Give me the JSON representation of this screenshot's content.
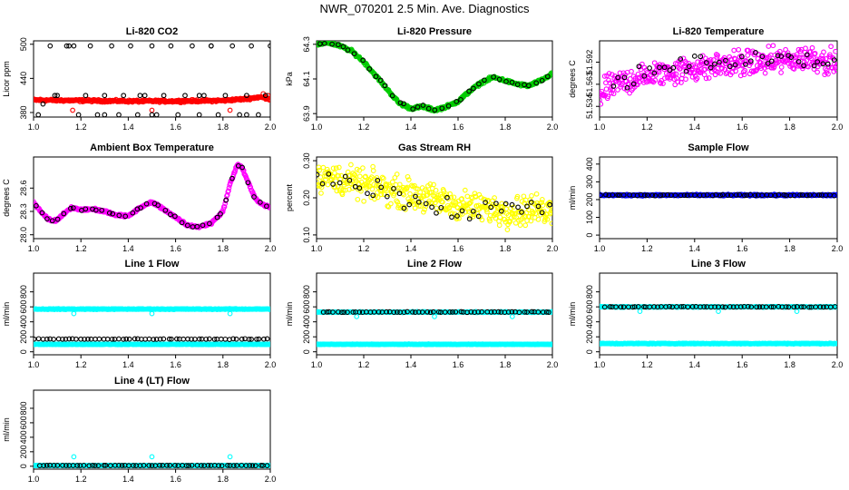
{
  "page": {
    "title": "NWR_070201  2.5 Min. Ave. Diagnostics"
  },
  "chart_data": [
    {
      "type": "scatter",
      "title": "Li-820 CO2",
      "ylabel": "Licor ppm",
      "xlim": [
        1.0,
        2.0
      ],
      "ylim": [
        372,
        506
      ],
      "xticks": [
        1.0,
        1.2,
        1.4,
        1.6,
        1.8,
        2.0
      ],
      "xtick_labels": [
        "1.0",
        "1.2",
        "1.4",
        "1.6",
        "1.8",
        "2.0"
      ],
      "yticks": [
        380,
        440,
        500
      ],
      "ytick_labels": [
        "380",
        "440",
        "500"
      ],
      "series": [
        {
          "name": "co2-dense",
          "color": "#ff0000",
          "style": "dense",
          "x": [
            1.0,
            1.2,
            1.4,
            1.6,
            1.8,
            1.9,
            1.95,
            1.98,
            2.0
          ],
          "y": [
            402,
            401,
            400,
            400,
            401,
            404,
            407,
            406,
            403
          ],
          "noise": 1.5
        },
        {
          "name": "co2-outliers-red",
          "color": "#ff0000",
          "style": "points",
          "x": [
            1.165,
            1.5,
            1.83,
            1.97,
            1.99
          ],
          "y": [
            384,
            384,
            384,
            413,
            410
          ]
        },
        {
          "name": "co2-black",
          "color": "#000000",
          "style": "points",
          "x": [
            1.02,
            1.04,
            1.07,
            1.09,
            1.14,
            1.17,
            1.19,
            1.22,
            1.24,
            1.27,
            1.3,
            1.33,
            1.36,
            1.38,
            1.41,
            1.44,
            1.47,
            1.5,
            1.52,
            1.55,
            1.58,
            1.61,
            1.64,
            1.67,
            1.7,
            1.72,
            1.75,
            1.78,
            1.81,
            1.84,
            1.87,
            1.9,
            1.92,
            1.95,
            1.98,
            2.0,
            1.1,
            1.3,
            1.5,
            1.7,
            1.9,
            1.15,
            1.45,
            1.75
          ],
          "y": [
            376,
            395,
            497,
            410,
            497,
            497,
            376,
            410,
            497,
            376,
            410,
            497,
            376,
            410,
            497,
            376,
            410,
            497,
            376,
            410,
            497,
            376,
            410,
            497,
            376,
            410,
            497,
            376,
            410,
            497,
            376,
            410,
            497,
            376,
            410,
            497,
            410,
            376,
            376,
            410,
            376,
            497,
            410,
            497
          ]
        }
      ]
    },
    {
      "type": "scatter",
      "title": "Li-820 Pressure",
      "ylabel": "kPa",
      "xlim": [
        1.0,
        2.0
      ],
      "ylim": [
        63.88,
        64.32
      ],
      "xticks": [
        1.0,
        1.2,
        1.4,
        1.6,
        1.8,
        2.0
      ],
      "xtick_labels": [
        "1.0",
        "1.2",
        "1.4",
        "1.6",
        "1.8",
        "2.0"
      ],
      "yticks": [
        63.9,
        64.1,
        64.3
      ],
      "ytick_labels": [
        "63.9",
        "64.1",
        "64.3"
      ],
      "series": [
        {
          "name": "pressure-green",
          "color": "#00cc00",
          "style": "dense",
          "x": [
            1.0,
            1.05,
            1.1,
            1.15,
            1.2,
            1.25,
            1.3,
            1.35,
            1.4,
            1.45,
            1.5,
            1.55,
            1.6,
            1.65,
            1.7,
            1.75,
            1.8,
            1.85,
            1.9,
            1.95,
            2.0
          ],
          "y": [
            64.3,
            64.31,
            64.29,
            64.26,
            64.2,
            64.12,
            64.04,
            63.96,
            63.93,
            63.94,
            63.92,
            63.94,
            63.97,
            64.03,
            64.08,
            64.11,
            64.09,
            64.07,
            64.06,
            64.09,
            64.13
          ],
          "noise": 0.006
        },
        {
          "name": "pressure-black",
          "color": "#000000",
          "style": "along",
          "x": [
            1.0,
            1.05,
            1.1,
            1.15,
            1.2,
            1.25,
            1.3,
            1.35,
            1.4,
            1.45,
            1.5,
            1.55,
            1.6,
            1.65,
            1.7,
            1.75,
            1.8,
            1.85,
            1.9,
            1.95,
            2.0
          ],
          "y": [
            64.3,
            64.31,
            64.29,
            64.26,
            64.2,
            64.12,
            64.04,
            63.96,
            63.93,
            63.94,
            63.92,
            63.94,
            63.97,
            64.03,
            64.08,
            64.11,
            64.09,
            64.07,
            64.06,
            64.09,
            64.13
          ],
          "count": 38,
          "noise": 0.006
        }
      ]
    },
    {
      "type": "scatter",
      "title": "Li-820 Temperature",
      "ylabel": "degrees C",
      "xlim": [
        1.0,
        2.0
      ],
      "ylim": [
        51.52,
        51.62
      ],
      "xticks": [
        1.0,
        1.2,
        1.4,
        1.6,
        1.8,
        2.0
      ],
      "xtick_labels": [
        "1.0",
        "1.2",
        "1.4",
        "1.6",
        "1.8",
        "2.0"
      ],
      "yticks": [
        51.534,
        51.563,
        51.592
      ],
      "ytick_labels": [
        "51.534",
        "51.563",
        "51.592"
      ],
      "series": [
        {
          "name": "temp-magenta",
          "color": "#ff00ff",
          "style": "dense",
          "x": [
            1.0,
            1.05,
            1.1,
            1.2,
            1.3,
            1.4,
            1.5,
            1.6,
            1.7,
            1.8,
            1.9,
            2.0
          ],
          "y": [
            51.548,
            51.56,
            51.566,
            51.574,
            51.58,
            51.584,
            51.588,
            51.59,
            51.592,
            51.595,
            51.598,
            51.59
          ],
          "noise": 0.013
        },
        {
          "name": "temp-black",
          "color": "#000000",
          "style": "along",
          "x": [
            1.05,
            1.1,
            1.2,
            1.3,
            1.4,
            1.5,
            1.6,
            1.7,
            1.8,
            1.9,
            2.0
          ],
          "y": [
            51.56,
            51.568,
            51.578,
            51.585,
            51.59,
            51.592,
            51.593,
            51.594,
            51.596,
            51.597,
            51.59
          ],
          "count": 44,
          "noise": 0.008
        }
      ]
    },
    {
      "type": "scatter",
      "title": "Ambient Box Temperature",
      "ylabel": "degrees C",
      "xlim": [
        1.0,
        2.0
      ],
      "ylim": [
        27.95,
        29.0
      ],
      "xticks": [
        1.0,
        1.2,
        1.4,
        1.6,
        1.8,
        2.0
      ],
      "xtick_labels": [
        "1.0",
        "1.2",
        "1.4",
        "1.6",
        "1.8",
        "2.0"
      ],
      "yticks": [
        28.0,
        28.3,
        28.6
      ],
      "ytick_labels": [
        "28.0",
        "28.3",
        "28.6"
      ],
      "series": [
        {
          "name": "abox-magenta",
          "color": "#ff00ff",
          "style": "dense",
          "x": [
            1.0,
            1.03,
            1.06,
            1.08,
            1.1,
            1.13,
            1.16,
            1.2,
            1.25,
            1.3,
            1.35,
            1.4,
            1.45,
            1.5,
            1.55,
            1.6,
            1.65,
            1.7,
            1.75,
            1.8,
            1.83,
            1.86,
            1.88,
            1.9,
            1.93,
            1.96,
            2.0
          ],
          "y": [
            28.42,
            28.3,
            28.2,
            28.18,
            28.19,
            28.28,
            28.35,
            28.32,
            28.33,
            28.3,
            28.25,
            28.24,
            28.35,
            28.42,
            28.33,
            28.22,
            28.12,
            28.1,
            28.15,
            28.3,
            28.65,
            28.9,
            28.87,
            28.72,
            28.5,
            28.4,
            28.35
          ],
          "noise": 0.012
        },
        {
          "name": "abox-black",
          "color": "#000000",
          "style": "along",
          "x": [
            1.0,
            1.03,
            1.06,
            1.08,
            1.1,
            1.13,
            1.16,
            1.2,
            1.25,
            1.3,
            1.35,
            1.4,
            1.45,
            1.5,
            1.55,
            1.6,
            1.65,
            1.7,
            1.75,
            1.8,
            1.83,
            1.86,
            1.88,
            1.9,
            1.93,
            1.96,
            2.0
          ],
          "y": [
            28.42,
            28.3,
            28.2,
            28.18,
            28.19,
            28.28,
            28.35,
            28.32,
            28.33,
            28.3,
            28.25,
            28.24,
            28.35,
            28.42,
            28.33,
            28.22,
            28.12,
            28.1,
            28.15,
            28.3,
            28.65,
            28.9,
            28.87,
            28.72,
            28.5,
            28.4,
            28.35
          ],
          "count": 42,
          "noise": 0.012
        }
      ]
    },
    {
      "type": "scatter",
      "title": "Gas Stream RH",
      "ylabel": "percent",
      "xlim": [
        1.0,
        2.0
      ],
      "ylim": [
        0.09,
        0.31
      ],
      "xticks": [
        1.0,
        1.2,
        1.4,
        1.6,
        1.8,
        2.0
      ],
      "xtick_labels": [
        "1.0",
        "1.2",
        "1.4",
        "1.6",
        "1.8",
        "2.0"
      ],
      "yticks": [
        0.1,
        0.2,
        0.3
      ],
      "ytick_labels": [
        "0.10",
        "0.20",
        "0.30"
      ],
      "series": [
        {
          "name": "rh-yellow",
          "color": "#ffff00",
          "style": "dense",
          "x": [
            1.0,
            1.2,
            1.4,
            1.6,
            1.8,
            2.0
          ],
          "y": [
            0.26,
            0.235,
            0.21,
            0.18,
            0.165,
            0.17
          ],
          "noise": 0.03
        },
        {
          "name": "rh-black",
          "color": "#000000",
          "style": "along",
          "x": [
            1.0,
            1.2,
            1.4,
            1.6,
            1.8,
            2.0
          ],
          "y": [
            0.265,
            0.235,
            0.2,
            0.17,
            0.17,
            0.175
          ],
          "count": 44,
          "noise": 0.025
        }
      ]
    },
    {
      "type": "scatter",
      "title": "Sample Flow",
      "ylabel": "ml/min",
      "xlim": [
        1.0,
        2.0
      ],
      "ylim": [
        -20,
        440
      ],
      "xticks": [
        1.0,
        1.2,
        1.4,
        1.6,
        1.8,
        2.0
      ],
      "xtick_labels": [
        "1.0",
        "1.2",
        "1.4",
        "1.6",
        "1.8",
        "2.0"
      ],
      "yticks": [
        0,
        100,
        200,
        300,
        400
      ],
      "ytick_labels": [
        "0",
        "100",
        "200",
        "300",
        "400"
      ],
      "series": [
        {
          "name": "sample-blue",
          "color": "#0000ff",
          "style": "dense",
          "x": [
            1.0,
            2.0
          ],
          "y": [
            225,
            225
          ],
          "noise": 3
        },
        {
          "name": "sample-black",
          "color": "#000000",
          "style": "along",
          "x": [
            1.0,
            2.0
          ],
          "y": [
            225,
            225
          ],
          "count": 60,
          "noise": 2
        }
      ]
    },
    {
      "type": "scatter",
      "title": "Line 1 Flow",
      "ylabel": "ml/min",
      "xlim": [
        1.0,
        2.0
      ],
      "ylim": [
        -40,
        1050
      ],
      "xticks": [
        1.0,
        1.2,
        1.4,
        1.6,
        1.8,
        2.0
      ],
      "xtick_labels": [
        "1.0",
        "1.2",
        "1.4",
        "1.6",
        "1.8",
        "2.0"
      ],
      "yticks": [
        0,
        200,
        400,
        600,
        800
      ],
      "ytick_labels": [
        "0",
        "200",
        "400",
        "600",
        "800"
      ],
      "series": [
        {
          "name": "l1-cyan-upper",
          "color": "#00ffff",
          "style": "dense",
          "x": [
            1.0,
            2.0
          ],
          "y": [
            570,
            570
          ],
          "noise": 4
        },
        {
          "name": "l1-cyan-lower",
          "color": "#00ffff",
          "style": "dense",
          "x": [
            1.0,
            2.0
          ],
          "y": [
            100,
            100
          ],
          "noise": 3
        },
        {
          "name": "l1-cyan-dips",
          "color": "#00ffff",
          "style": "points",
          "x": [
            1.17,
            1.5,
            1.83
          ],
          "y": [
            510,
            510,
            510
          ]
        },
        {
          "name": "l1-black",
          "color": "#000000",
          "style": "along",
          "x": [
            1.0,
            2.0
          ],
          "y": [
            170,
            170
          ],
          "count": 62,
          "noise": 3
        }
      ]
    },
    {
      "type": "scatter",
      "title": "Line 2 Flow",
      "ylabel": "ml/min",
      "xlim": [
        1.0,
        2.0
      ],
      "ylim": [
        -40,
        1050
      ],
      "xticks": [
        1.0,
        1.2,
        1.4,
        1.6,
        1.8,
        2.0
      ],
      "xtick_labels": [
        "1.0",
        "1.2",
        "1.4",
        "1.6",
        "1.8",
        "2.0"
      ],
      "yticks": [
        0,
        200,
        400,
        600,
        800
      ],
      "ytick_labels": [
        "0",
        "200",
        "400",
        "600",
        "800"
      ],
      "series": [
        {
          "name": "l2-cyan-upper",
          "color": "#00ffff",
          "style": "dense",
          "x": [
            1.0,
            2.0
          ],
          "y": [
            530,
            530
          ],
          "noise": 4
        },
        {
          "name": "l2-cyan-lower",
          "color": "#00ffff",
          "style": "dense",
          "x": [
            1.0,
            2.0
          ],
          "y": [
            100,
            100
          ],
          "noise": 3
        },
        {
          "name": "l2-cyan-dips",
          "color": "#00ffff",
          "style": "points",
          "x": [
            1.17,
            1.5,
            1.83
          ],
          "y": [
            470,
            470,
            470
          ]
        },
        {
          "name": "l2-black",
          "color": "#000000",
          "style": "along",
          "x": [
            1.02,
            2.0
          ],
          "y": [
            530,
            530
          ],
          "count": 62,
          "noise": 3
        }
      ]
    },
    {
      "type": "scatter",
      "title": "Line 3 Flow",
      "ylabel": "ml/min",
      "xlim": [
        1.0,
        2.0
      ],
      "ylim": [
        -40,
        1050
      ],
      "xticks": [
        1.0,
        1.2,
        1.4,
        1.6,
        1.8,
        2.0
      ],
      "xtick_labels": [
        "1.0",
        "1.2",
        "1.4",
        "1.6",
        "1.8",
        "2.0"
      ],
      "yticks": [
        0,
        200,
        400,
        600,
        800
      ],
      "ytick_labels": [
        "0",
        "200",
        "400",
        "600",
        "800"
      ],
      "series": [
        {
          "name": "l3-cyan-upper",
          "color": "#00ffff",
          "style": "dense",
          "x": [
            1.0,
            2.0
          ],
          "y": [
            600,
            600
          ],
          "noise": 4
        },
        {
          "name": "l3-cyan-lower",
          "color": "#00ffff",
          "style": "dense",
          "x": [
            1.0,
            2.0
          ],
          "y": [
            110,
            110
          ],
          "noise": 4
        },
        {
          "name": "l3-cyan-dips",
          "color": "#00ffff",
          "style": "points",
          "x": [
            1.0,
            1.17,
            1.5,
            1.83
          ],
          "y": [
            610,
            540,
            540,
            540
          ]
        },
        {
          "name": "l3-black",
          "color": "#000000",
          "style": "along",
          "x": [
            1.02,
            2.0
          ],
          "y": [
            600,
            600
          ],
          "count": 62,
          "noise": 3
        }
      ]
    },
    {
      "type": "scatter",
      "title": "Line 4 (LT) Flow",
      "ylabel": "ml/min",
      "xlim": [
        1.0,
        2.0
      ],
      "ylim": [
        -40,
        1050
      ],
      "xticks": [
        1.0,
        1.2,
        1.4,
        1.6,
        1.8,
        2.0
      ],
      "xtick_labels": [
        "1.0",
        "1.2",
        "1.4",
        "1.6",
        "1.8",
        "2.0"
      ],
      "yticks": [
        0,
        200,
        400,
        600,
        800
      ],
      "ytick_labels": [
        "0",
        "200",
        "400",
        "600",
        "800"
      ],
      "series": [
        {
          "name": "l4-cyan",
          "color": "#00ffff",
          "style": "dense",
          "x": [
            1.0,
            2.0
          ],
          "y": [
            10,
            10
          ],
          "noise": 2
        },
        {
          "name": "l4-cyan-spikes",
          "color": "#00ffff",
          "style": "points",
          "x": [
            1.17,
            1.5,
            1.83
          ],
          "y": [
            130,
            130,
            130
          ]
        },
        {
          "name": "l4-black",
          "color": "#000000",
          "style": "along",
          "x": [
            1.02,
            2.0
          ],
          "y": [
            10,
            10
          ],
          "count": 62,
          "noise": 2
        }
      ]
    }
  ]
}
